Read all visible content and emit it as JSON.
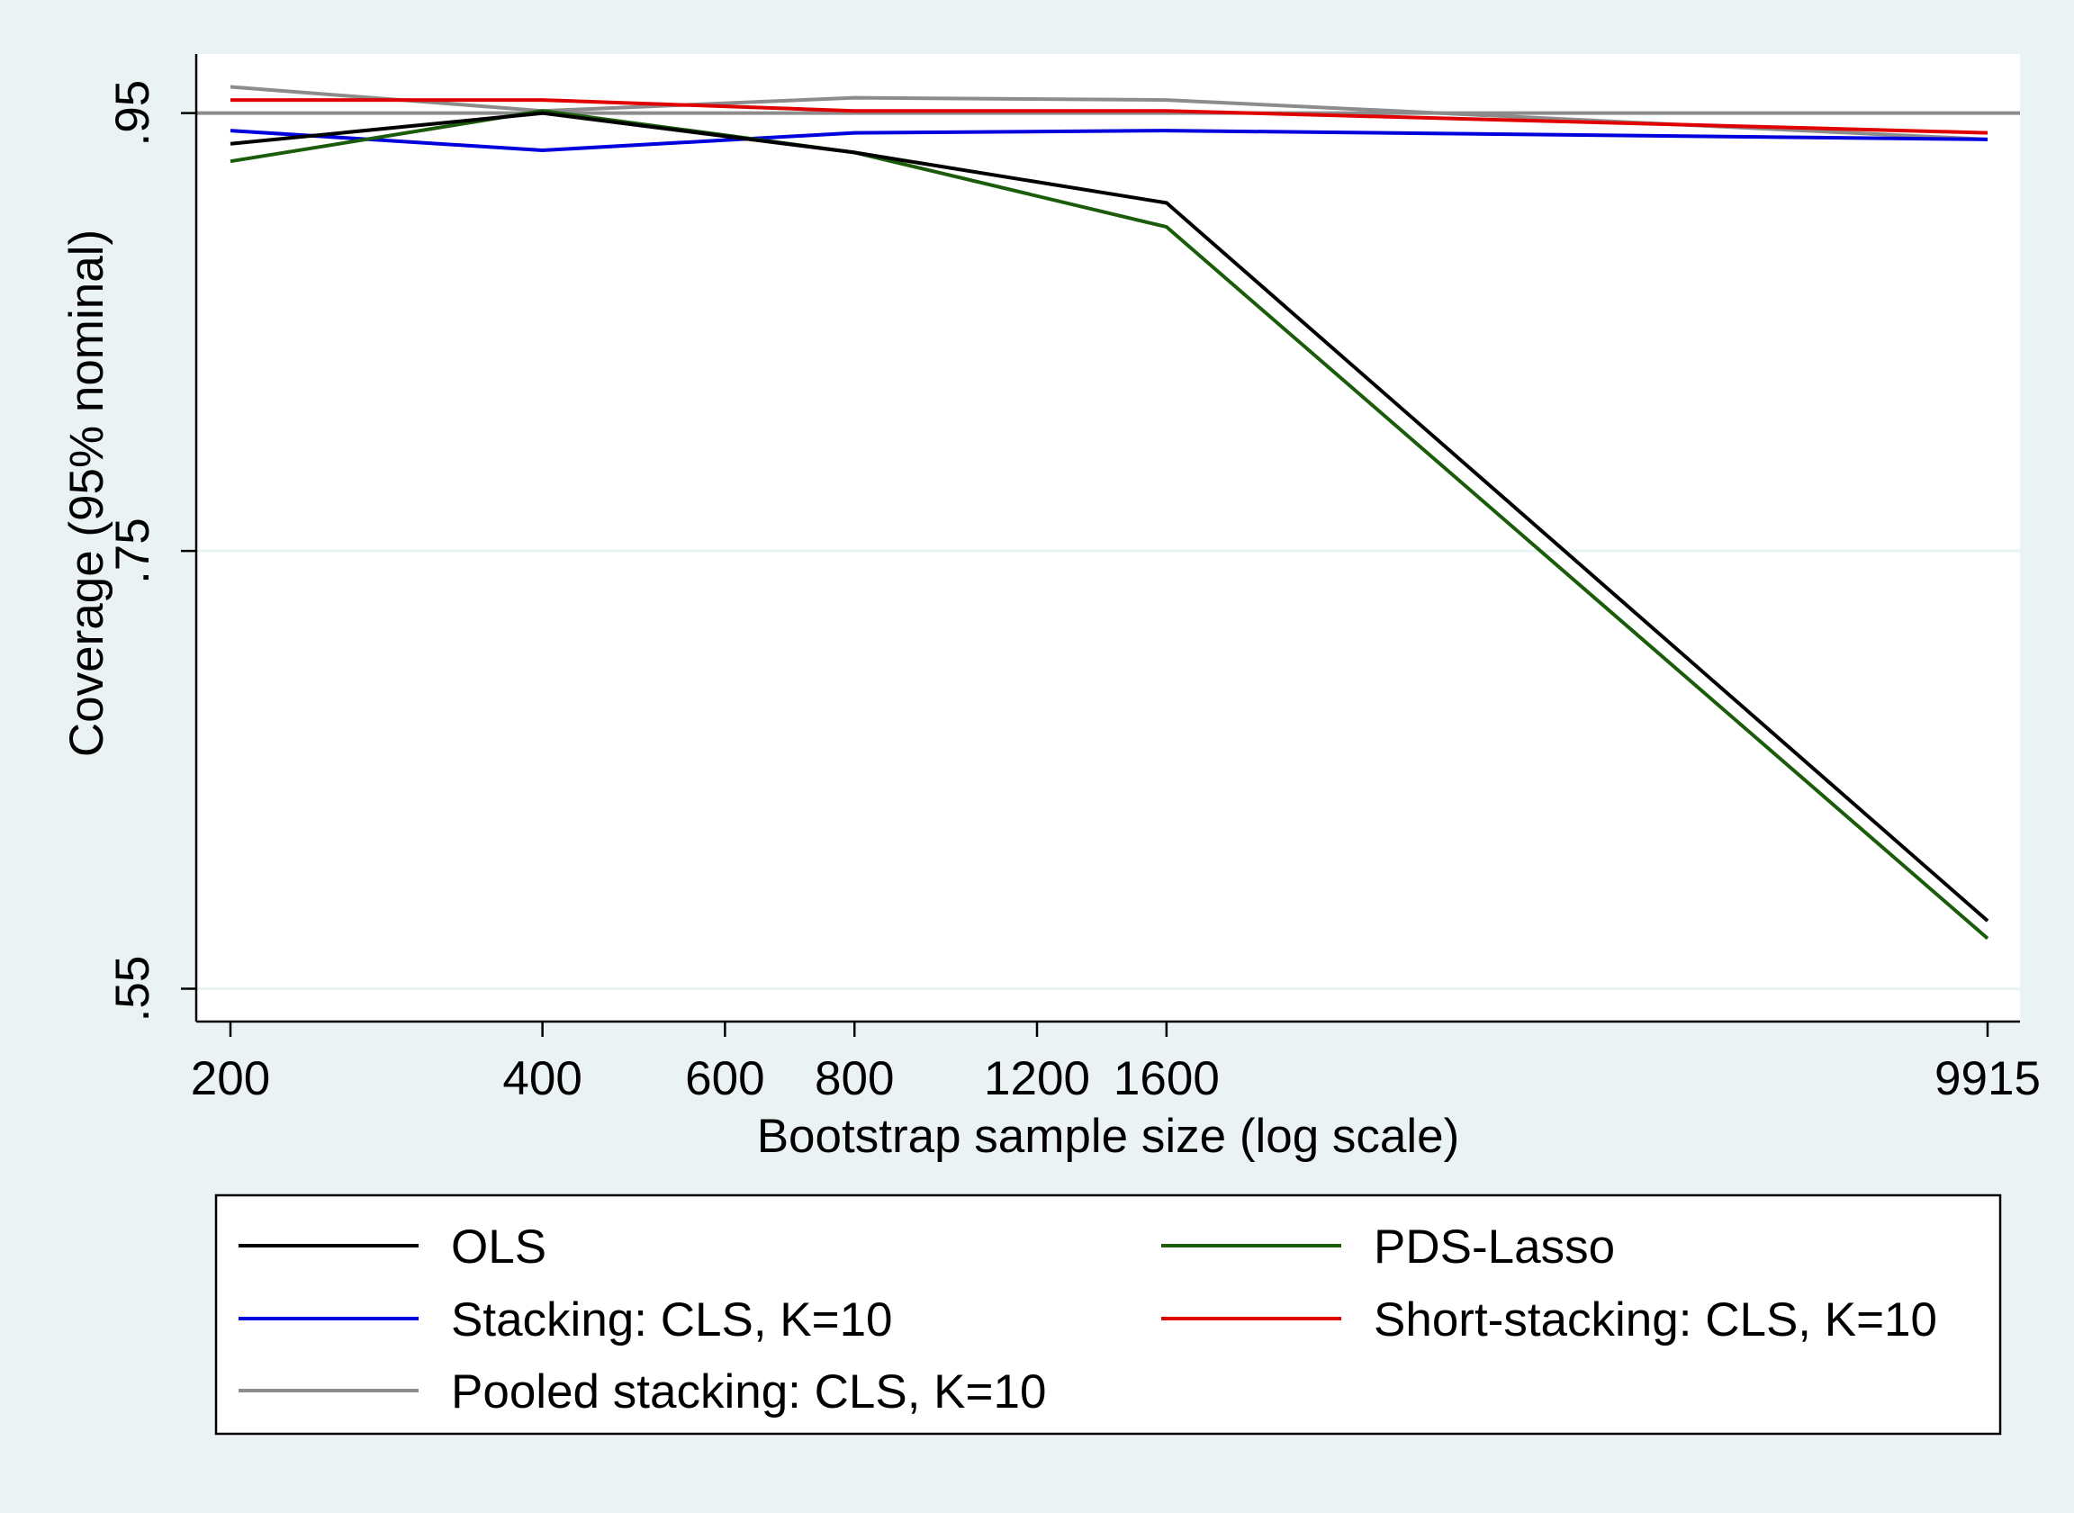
{
  "chart_data": {
    "type": "line",
    "title": "",
    "xlabel": "Bootstrap sample size (log scale)",
    "ylabel": "Coverage (95% nominal)",
    "x_scale": "log",
    "x": [
      200,
      400,
      800,
      1600,
      9915
    ],
    "x_ticks": [
      200,
      400,
      600,
      800,
      1200,
      1600,
      9915
    ],
    "x_tick_labels": [
      "200",
      "400",
      "600",
      "800",
      "1200",
      "1600",
      "9915"
    ],
    "y_ticks": [
      0.55,
      0.75,
      0.95
    ],
    "y_tick_labels": [
      ".55",
      ".75",
      ".95"
    ],
    "ylim": [
      0.535,
      0.977
    ],
    "grid": true,
    "reference_line": {
      "y": 0.95,
      "color": "#8c8c8c"
    },
    "legend_position": "bottom",
    "series": [
      {
        "name": "OLS",
        "color": "#000000",
        "values": [
          0.936,
          0.95,
          0.932,
          0.909,
          0.581
        ]
      },
      {
        "name": "PDS-Lasso",
        "color": "#1a5c0a",
        "values": [
          0.928,
          0.951,
          0.932,
          0.898,
          0.573
        ]
      },
      {
        "name": "Stacking: CLS, K=10",
        "color": "#0000dd",
        "values": [
          0.942,
          0.933,
          0.941,
          0.942,
          0.938
        ]
      },
      {
        "name": "Short-stacking: CLS, K=10",
        "color": "#e00000",
        "values": [
          0.956,
          0.956,
          0.951,
          0.951,
          0.941
        ]
      },
      {
        "name": "Pooled stacking: CLS, K=10",
        "color": "#8c8c8c",
        "values": [
          0.962,
          0.951,
          0.957,
          0.956,
          0.938
        ]
      }
    ]
  }
}
